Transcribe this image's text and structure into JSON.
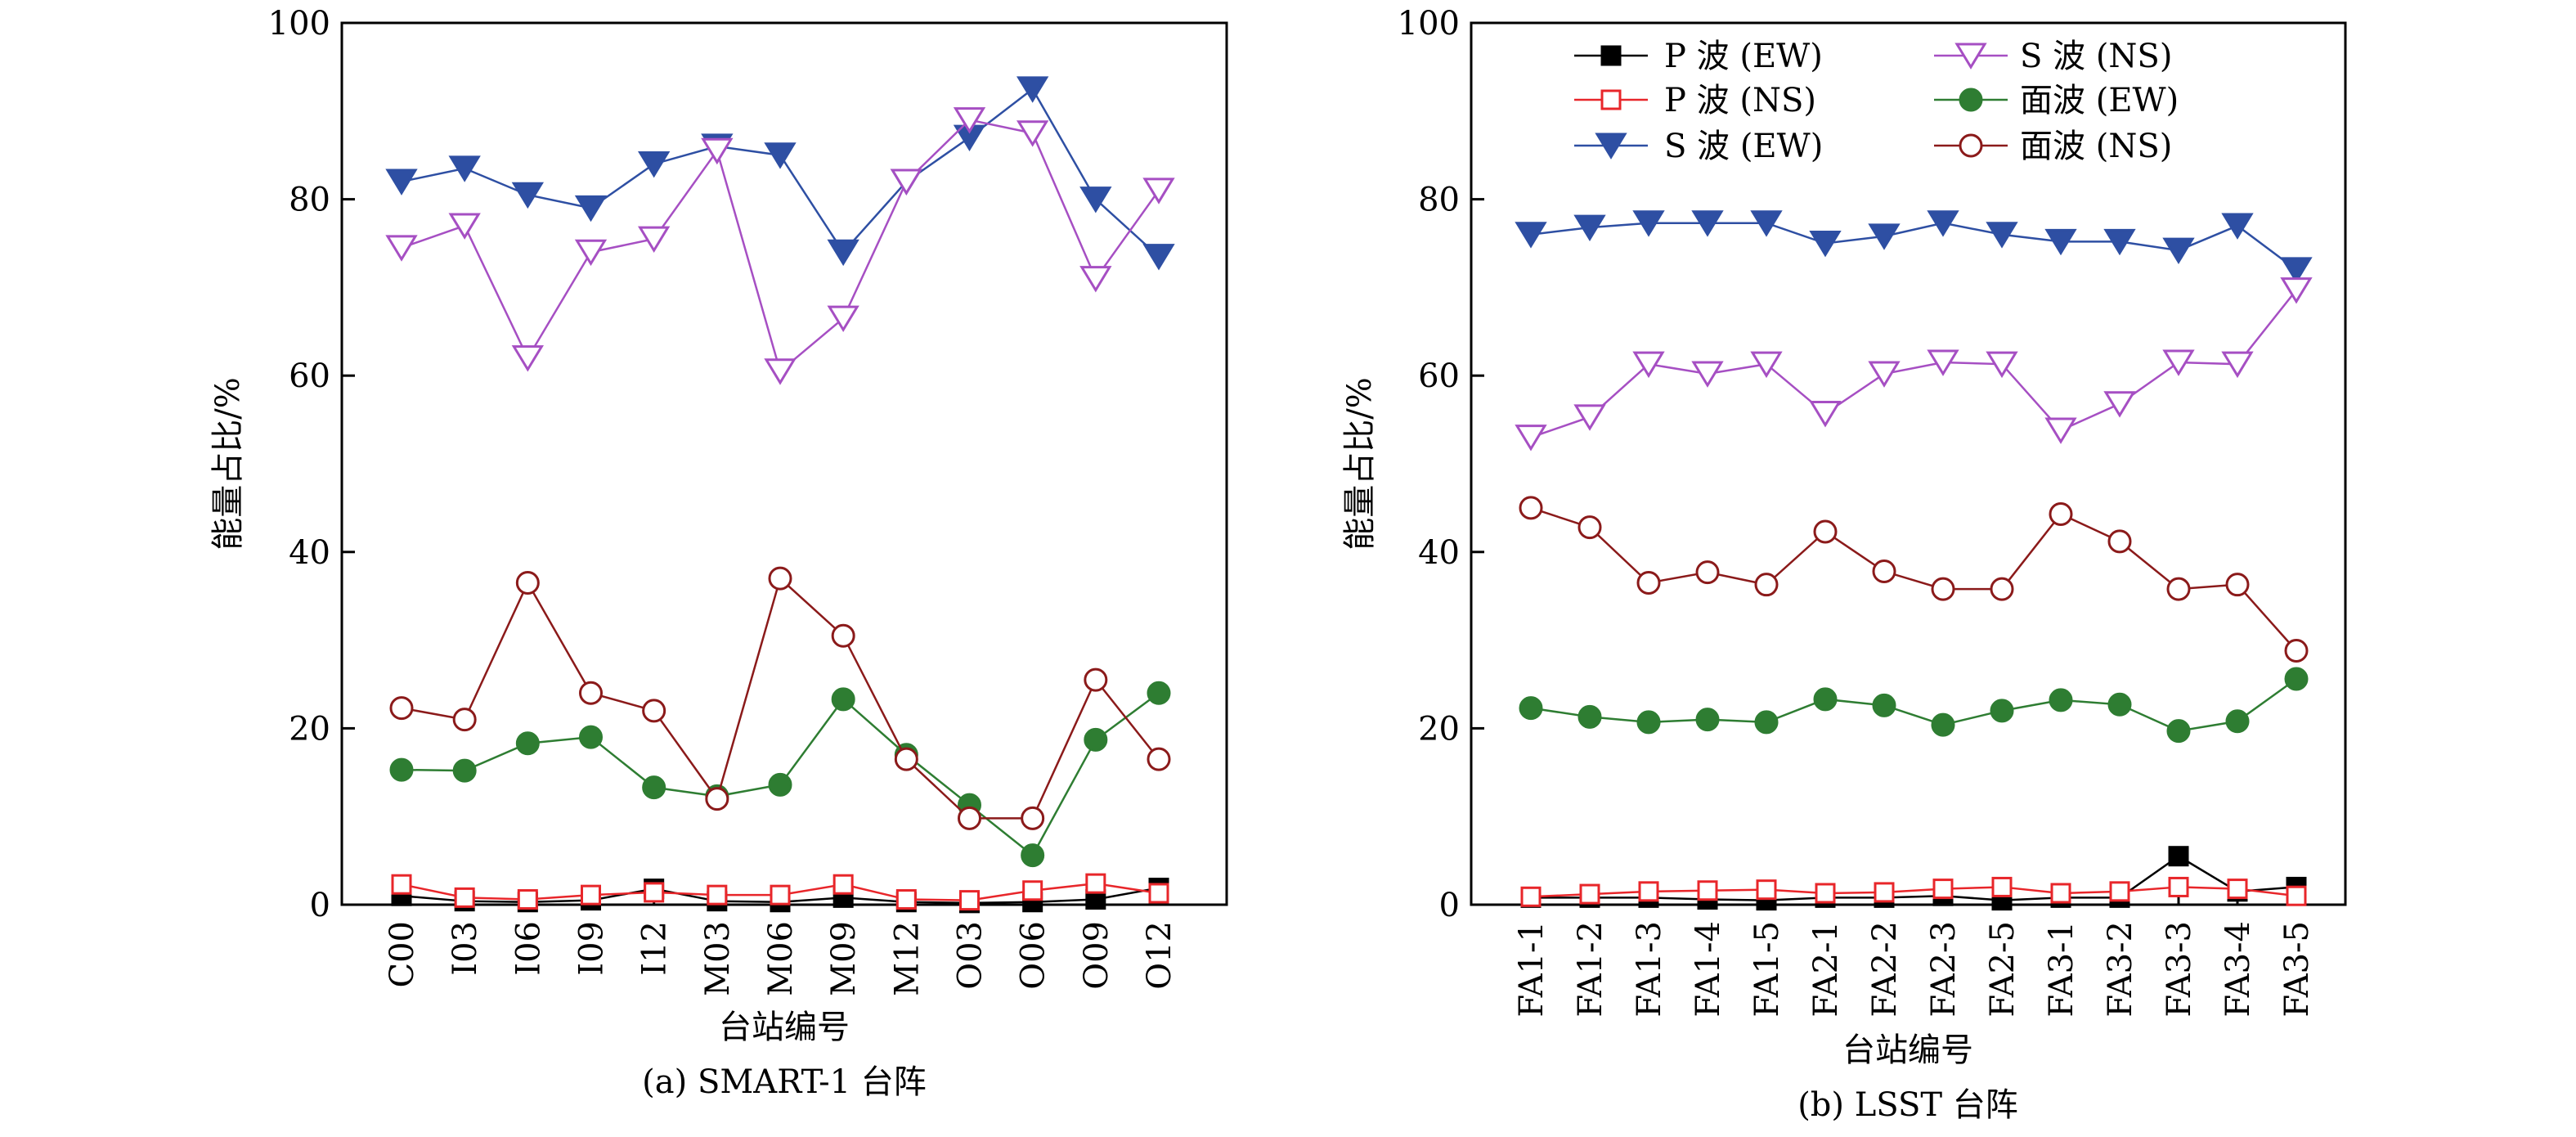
{
  "chart_data": [
    {
      "type": "line",
      "caption": "(a) SMART-1 台阵",
      "xlabel": "台站编号",
      "ylabel": "能量占比/%",
      "ylim": [
        0,
        100
      ],
      "yticks": [
        0,
        20,
        40,
        60,
        80,
        100
      ],
      "categories": [
        "C00",
        "I03",
        "I06",
        "I09",
        "I12",
        "M03",
        "M06",
        "M09",
        "M12",
        "O03",
        "O06",
        "O09",
        "O12"
      ],
      "series": [
        {
          "name": "P 波 (EW)",
          "color": "#000000",
          "marker": "filled-square",
          "values": [
            1.0,
            0.4,
            0.3,
            0.5,
            1.8,
            0.4,
            0.3,
            0.8,
            0.3,
            0.2,
            0.3,
            0.6,
            1.9
          ]
        },
        {
          "name": "P 波 (NS)",
          "color": "#e8262a",
          "marker": "open-square",
          "values": [
            2.3,
            0.8,
            0.6,
            1.1,
            1.4,
            1.1,
            1.1,
            2.3,
            0.6,
            0.5,
            1.6,
            2.4,
            1.3
          ]
        },
        {
          "name": "S 波 (EW)",
          "color": "#2e4fa3",
          "marker": "filled-down-triangle",
          "values": [
            82.0,
            83.5,
            80.5,
            79.0,
            84.0,
            86.0,
            85.0,
            74.0,
            82.0,
            87.0,
            92.5,
            80.0,
            73.5
          ]
        },
        {
          "name": "S 波 (NS)",
          "color": "#a64fc3",
          "marker": "open-down-triangle",
          "values": [
            74.5,
            77.0,
            62.0,
            74.0,
            75.5,
            85.5,
            60.5,
            66.5,
            82.0,
            89.0,
            87.5,
            71.0,
            81.0
          ]
        },
        {
          "name": "面波 (EW)",
          "color": "#2e7d32",
          "marker": "filled-circle",
          "values": [
            15.3,
            15.2,
            18.3,
            19.0,
            13.3,
            12.3,
            13.6,
            23.3,
            17.0,
            11.3,
            5.6,
            18.7,
            24.0
          ]
        },
        {
          "name": "面波 (NS)",
          "color": "#8b1a1a",
          "marker": "open-circle",
          "values": [
            22.3,
            21.0,
            36.5,
            24.0,
            22.0,
            12.0,
            37.0,
            30.5,
            16.5,
            9.8,
            9.8,
            25.5,
            16.5
          ]
        }
      ]
    },
    {
      "type": "line",
      "caption": "(b) LSST 台阵",
      "xlabel": "台站编号",
      "ylabel": "能量占比/%",
      "ylim": [
        0,
        100
      ],
      "yticks": [
        0,
        20,
        40,
        60,
        80,
        100
      ],
      "legend_position": "top",
      "categories": [
        "FA1-1",
        "FA1-2",
        "FA1-3",
        "FA1-4",
        "FA1-5",
        "FA2-1",
        "FA2-2",
        "FA2-3",
        "FA2-5",
        "FA3-1",
        "FA3-2",
        "FA3-3",
        "FA3-4",
        "FA3-5"
      ],
      "series": [
        {
          "name": "P 波 (EW)",
          "color": "#000000",
          "marker": "filled-square",
          "values": [
            0.8,
            0.8,
            0.8,
            0.6,
            0.5,
            0.8,
            0.8,
            1.0,
            0.5,
            0.8,
            0.8,
            5.5,
            1.5,
            2.0
          ]
        },
        {
          "name": "P 波 (NS)",
          "color": "#e8262a",
          "marker": "open-square",
          "values": [
            0.9,
            1.2,
            1.5,
            1.6,
            1.7,
            1.3,
            1.4,
            1.8,
            2.0,
            1.3,
            1.5,
            2.0,
            1.8,
            1.0
          ]
        },
        {
          "name": "S 波 (EW)",
          "color": "#2e4fa3",
          "marker": "filled-down-triangle",
          "values": [
            76.0,
            76.8,
            77.3,
            77.3,
            77.3,
            75.0,
            75.8,
            77.3,
            76.0,
            75.2,
            75.2,
            74.2,
            77.0,
            72.0
          ]
        },
        {
          "name": "S 波 (NS)",
          "color": "#a64fc3",
          "marker": "open-down-triangle",
          "values": [
            53.0,
            55.3,
            61.3,
            60.2,
            61.3,
            55.7,
            60.2,
            61.5,
            61.3,
            53.8,
            56.8,
            61.5,
            61.3,
            69.7
          ]
        },
        {
          "name": "面波 (EW)",
          "color": "#2e7d32",
          "marker": "filled-circle",
          "values": [
            22.3,
            21.3,
            20.7,
            21.0,
            20.7,
            23.3,
            22.6,
            20.4,
            22.0,
            23.2,
            22.7,
            19.7,
            20.8,
            25.6
          ]
        },
        {
          "name": "面波 (NS)",
          "color": "#8b1a1a",
          "marker": "open-circle",
          "values": [
            45.0,
            42.8,
            36.5,
            37.7,
            36.3,
            42.3,
            37.8,
            35.8,
            35.8,
            44.3,
            41.2,
            35.8,
            36.3,
            28.8
          ]
        }
      ]
    }
  ]
}
